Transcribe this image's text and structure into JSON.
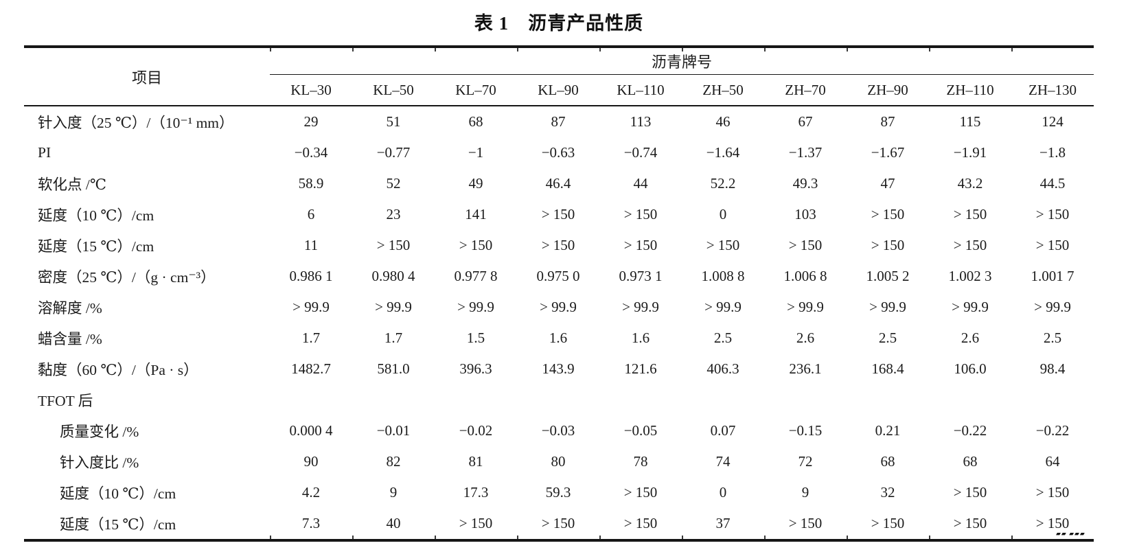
{
  "title": "表 1　沥青产品性质",
  "table": {
    "item_header": "项目",
    "group_header": "沥青牌号",
    "columns": [
      "KL–30",
      "KL–50",
      "KL–70",
      "KL–90",
      "KL–110",
      "ZH–50",
      "ZH–70",
      "ZH–90",
      "ZH–110",
      "ZH–130"
    ],
    "rows": [
      {
        "label": "针入度（25 ℃）/（10⁻¹ mm）",
        "indent": false,
        "section": false,
        "values": [
          "29",
          "51",
          "68",
          "87",
          "113",
          "46",
          "67",
          "87",
          "115",
          "124"
        ]
      },
      {
        "label": "PI",
        "indent": false,
        "section": false,
        "values": [
          "−0.34",
          "−0.77",
          "−1",
          "−0.63",
          "−0.74",
          "−1.64",
          "−1.37",
          "−1.67",
          "−1.91",
          "−1.8"
        ]
      },
      {
        "label": "软化点 /℃",
        "indent": false,
        "section": false,
        "values": [
          "58.9",
          "52",
          "49",
          "46.4",
          "44",
          "52.2",
          "49.3",
          "47",
          "43.2",
          "44.5"
        ]
      },
      {
        "label": "延度（10 ℃）/cm",
        "indent": false,
        "section": false,
        "values": [
          "6",
          "23",
          "141",
          "> 150",
          "> 150",
          "0",
          "103",
          "> 150",
          "> 150",
          "> 150"
        ]
      },
      {
        "label": "延度（15 ℃）/cm",
        "indent": false,
        "section": false,
        "values": [
          "11",
          "> 150",
          "> 150",
          "> 150",
          "> 150",
          "> 150",
          "> 150",
          "> 150",
          "> 150",
          "> 150"
        ]
      },
      {
        "label": "密度（25 ℃）/（g · cm⁻³）",
        "indent": false,
        "section": false,
        "values": [
          "0.986 1",
          "0.980 4",
          "0.977 8",
          "0.975 0",
          "0.973 1",
          "1.008 8",
          "1.006 8",
          "1.005 2",
          "1.002 3",
          "1.001 7"
        ]
      },
      {
        "label": "溶解度 /%",
        "indent": false,
        "section": false,
        "values": [
          "> 99.9",
          "> 99.9",
          "> 99.9",
          "> 99.9",
          "> 99.9",
          "> 99.9",
          "> 99.9",
          "> 99.9",
          "> 99.9",
          "> 99.9"
        ]
      },
      {
        "label": "蜡含量 /%",
        "indent": false,
        "section": false,
        "values": [
          "1.7",
          "1.7",
          "1.5",
          "1.6",
          "1.6",
          "2.5",
          "2.6",
          "2.5",
          "2.6",
          "2.5"
        ]
      },
      {
        "label": "黏度（60 ℃）/（Pa · s）",
        "indent": false,
        "section": false,
        "values": [
          "1482.7",
          "581.0",
          "396.3",
          "143.9",
          "121.6",
          "406.3",
          "236.1",
          "168.4",
          "106.0",
          "98.4"
        ]
      },
      {
        "label": "TFOT 后",
        "indent": false,
        "section": true,
        "values": [
          "",
          "",
          "",
          "",
          "",
          "",
          "",
          "",
          "",
          ""
        ]
      },
      {
        "label": "质量变化 /%",
        "indent": true,
        "section": false,
        "values": [
          "0.000 4",
          "−0.01",
          "−0.02",
          "−0.03",
          "−0.05",
          "0.07",
          "−0.15",
          "0.21",
          "−0.22",
          "−0.22"
        ]
      },
      {
        "label": "针入度比 /%",
        "indent": true,
        "section": false,
        "values": [
          "90",
          "82",
          "81",
          "80",
          "78",
          "74",
          "72",
          "68",
          "68",
          "64"
        ]
      },
      {
        "label": "延度（10 ℃）/cm",
        "indent": true,
        "section": false,
        "values": [
          "4.2",
          "9",
          "17.3",
          "59.3",
          "> 150",
          "0",
          "9",
          "32",
          "> 150",
          "> 150"
        ]
      },
      {
        "label": "延度（15 ℃）/cm",
        "indent": true,
        "section": false,
        "values": [
          "7.3",
          "40",
          "> 150",
          "> 150",
          "> 150",
          "37",
          "> 150",
          "> 150",
          "> 150",
          "> 150"
        ]
      }
    ]
  },
  "watermark_artifact": "▰▰ ▰▰▰ ▰▰",
  "colors": {
    "text": "#1b1b1b",
    "rule": "#161616",
    "background": "#ffffff"
  }
}
